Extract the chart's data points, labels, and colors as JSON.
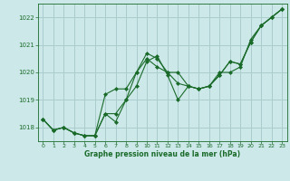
{
  "title": "Graphe pression niveau de la mer (hPa)",
  "background_color": "#cce8e8",
  "grid_color": "#aacccc",
  "line_color": "#1a6b2a",
  "marker_color": "#1a6b2a",
  "xlim": [
    -0.5,
    23.5
  ],
  "ylim": [
    1017.5,
    1022.5
  ],
  "yticks": [
    1018,
    1019,
    1020,
    1021,
    1022
  ],
  "xticks": [
    0,
    1,
    2,
    3,
    4,
    5,
    6,
    7,
    8,
    9,
    10,
    11,
    12,
    13,
    14,
    15,
    16,
    17,
    18,
    19,
    20,
    21,
    22,
    23
  ],
  "series": [
    [
      1018.3,
      1017.9,
      1018.0,
      1017.8,
      1017.7,
      1017.7,
      1019.2,
      1019.4,
      1019.4,
      1020.0,
      1020.5,
      1020.2,
      1020.0,
      1019.6,
      1019.5,
      1019.4,
      1019.5,
      1020.0,
      1020.0,
      1020.2,
      1021.2,
      1021.7,
      1022.0,
      1022.3
    ],
    [
      1018.3,
      1017.9,
      1018.0,
      1017.8,
      1017.7,
      1017.7,
      1018.5,
      1018.5,
      1019.0,
      1019.5,
      1020.4,
      1020.6,
      1019.9,
      1019.0,
      1019.5,
      1019.4,
      1019.5,
      1019.9,
      1020.4,
      1020.3,
      1021.1,
      1021.7,
      1022.0,
      1022.3
    ],
    [
      1018.3,
      1017.9,
      1018.0,
      1017.8,
      1017.7,
      1017.7,
      1018.5,
      1018.2,
      1019.0,
      1020.0,
      1020.7,
      1020.5,
      1020.0,
      1020.0,
      1019.5,
      1019.4,
      1019.5,
      1019.9,
      1020.4,
      1020.3,
      1021.1,
      1021.7,
      1022.0,
      1022.3
    ]
  ]
}
